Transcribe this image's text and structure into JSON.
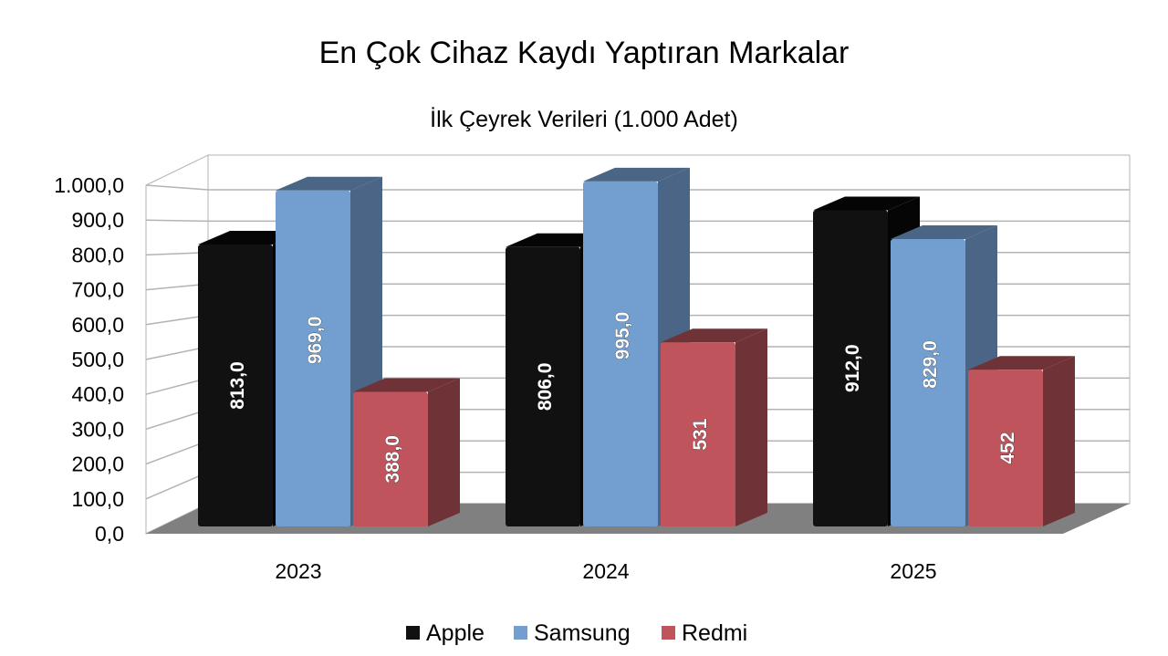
{
  "chart_data": {
    "type": "bar",
    "title": "En Çok Cihaz Kaydı Yaptıran Markalar",
    "subtitle": "İlk Çeyrek Verileri (1.000 Adet)",
    "xlabel": "",
    "ylabel": "",
    "categories": [
      "2023",
      "2024",
      "2025"
    ],
    "series": [
      {
        "name": "Apple",
        "values": [
          813,
          806,
          912
        ],
        "labels": [
          "813,0",
          "806,0",
          "912,0"
        ],
        "color": "#111111",
        "side": "#050505"
      },
      {
        "name": "Samsung",
        "values": [
          969,
          995,
          829
        ],
        "labels": [
          "969,0",
          "995,0",
          "829,0"
        ],
        "color": "#729fcf",
        "side": "#4a6585"
      },
      {
        "name": "Redmi",
        "values": [
          388,
          531,
          452
        ],
        "labels": [
          "388,0",
          "531",
          "452"
        ],
        "color": "#c0545d",
        "side": "#6f3237"
      }
    ],
    "ylim": [
      0,
      1000
    ],
    "yticks": [
      "0,0",
      "100,0",
      "200,0",
      "300,0",
      "400,0",
      "500,0",
      "600,0",
      "700,0",
      "800,0",
      "900,0",
      "1.000,0"
    ],
    "grid": true,
    "style": "3d",
    "legend": "bottom"
  }
}
